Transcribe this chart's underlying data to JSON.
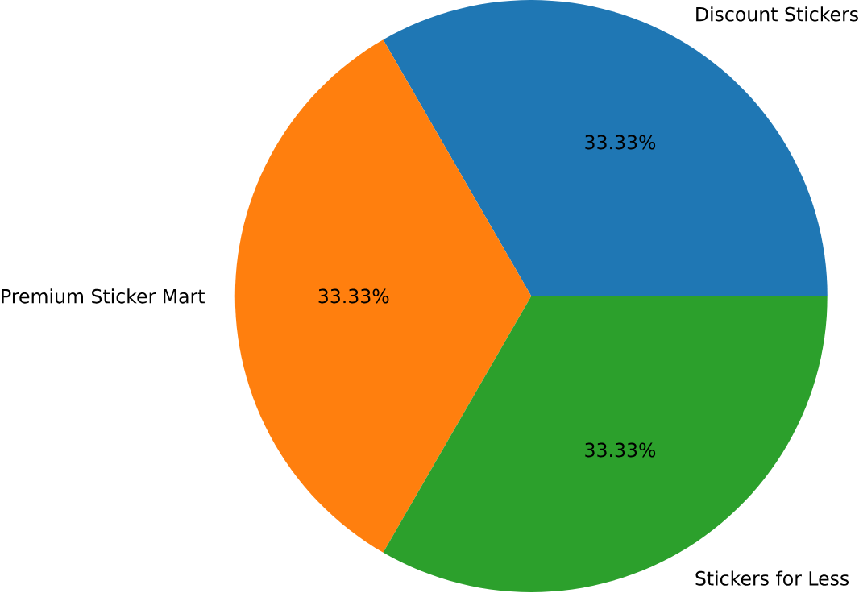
{
  "chart_data": {
    "type": "pie",
    "categories": [
      "Discount Stickers",
      "Premium Sticker Mart",
      "Stickers for Less"
    ],
    "values": [
      33.33,
      33.33,
      33.33
    ],
    "colors": [
      "#1f77b4",
      "#ff7f0e",
      "#2ca02c"
    ],
    "value_labels": [
      "33.33%",
      "33.33%",
      "33.33%"
    ]
  }
}
